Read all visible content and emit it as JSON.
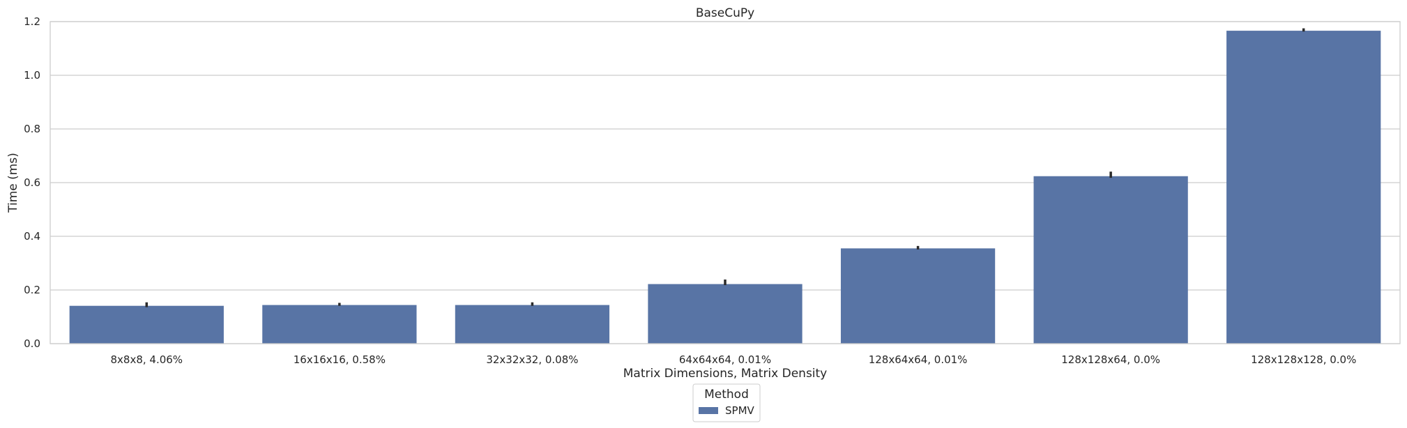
{
  "chart_data": {
    "type": "bar",
    "title": "BaseCuPy",
    "xlabel": "Matrix Dimensions, Matrix Density",
    "ylabel": "Time (ms)",
    "categories": [
      "8x8x8, 4.06%",
      "16x16x16, 0.58%",
      "32x32x32, 0.08%",
      "64x64x64, 0.01%",
      "128x64x64, 0.01%",
      "128x128x64, 0.0%",
      "128x128x128, 0.0%"
    ],
    "series": [
      {
        "name": "SPMV",
        "values": [
          0.141,
          0.144,
          0.144,
          0.222,
          0.355,
          0.624,
          1.166
        ],
        "error_low": [
          0.136,
          0.141,
          0.141,
          0.218,
          0.351,
          0.618,
          1.163
        ],
        "error_high": [
          0.154,
          0.152,
          0.154,
          0.239,
          0.364,
          0.641,
          1.175
        ]
      }
    ],
    "ylim": [
      0,
      1.2
    ],
    "yticks": [
      "0.0",
      "0.2",
      "0.4",
      "0.6",
      "0.8",
      "1.0",
      "1.2"
    ],
    "grid": true,
    "legend": {
      "title": "Method",
      "position": "bottom-center"
    },
    "colors": {
      "bar": "#5874a5",
      "error": "#2b2b2b",
      "grid": "#cccccc",
      "spine": "#cccccc"
    }
  }
}
